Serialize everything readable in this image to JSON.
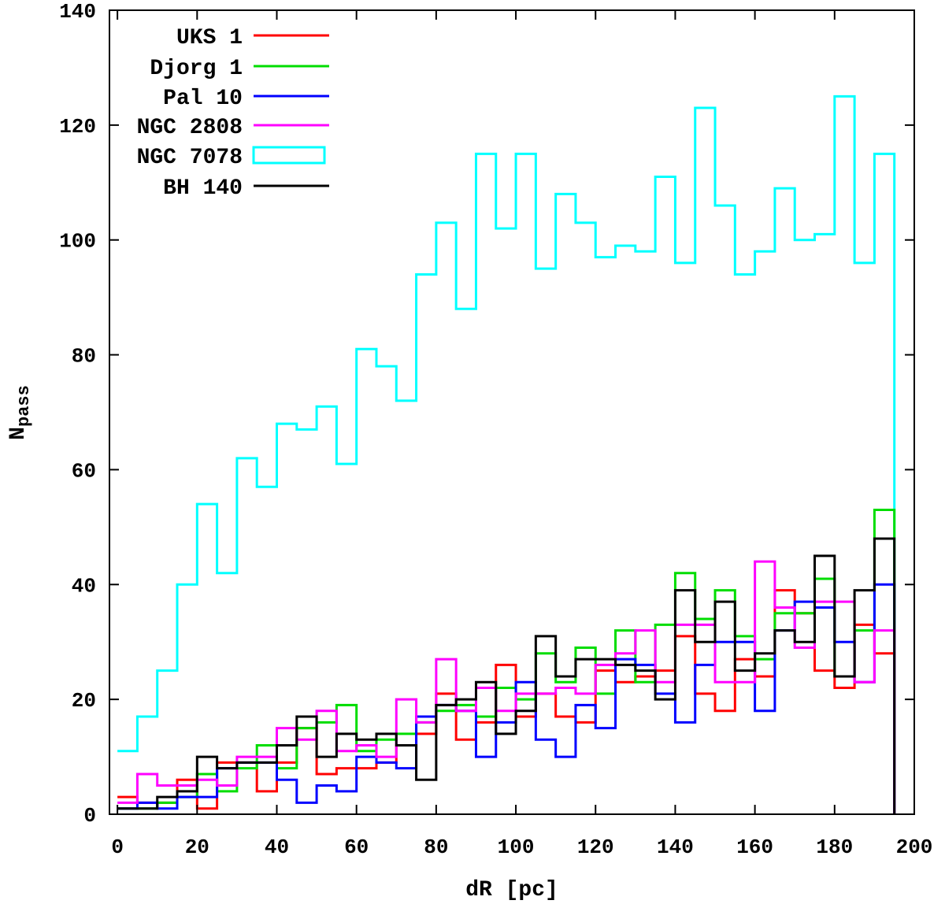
{
  "chart_data": {
    "type": "line",
    "style": "step-histogram",
    "xlabel": "dR [pc]",
    "ylabel": "N",
    "ylabel_subscript": "pass",
    "xlim": [
      -2,
      200
    ],
    "ylim": [
      0,
      140
    ],
    "x_ticks": [
      0,
      20,
      40,
      60,
      80,
      100,
      120,
      140,
      160,
      180,
      200
    ],
    "y_ticks": [
      0,
      20,
      40,
      60,
      80,
      100,
      120,
      140
    ],
    "legend_position": "top-left",
    "grid": false,
    "bin_edges": [
      0,
      5,
      10,
      15,
      20,
      25,
      30,
      35,
      40,
      45,
      50,
      55,
      60,
      65,
      70,
      75,
      80,
      85,
      90,
      95,
      100,
      105,
      110,
      115,
      120,
      125,
      130,
      135,
      140,
      145,
      150,
      155,
      160,
      165,
      170,
      175,
      180,
      185,
      190,
      195
    ],
    "series": [
      {
        "name": "UKS 1",
        "color": "#ff0000",
        "values": [
          3,
          2,
          2,
          6,
          1,
          9,
          9,
          4,
          9,
          15,
          7,
          8,
          8,
          9,
          12,
          14,
          21,
          13,
          16,
          26,
          17,
          21,
          17,
          16,
          25,
          23,
          24,
          25,
          31,
          21,
          18,
          27,
          24,
          39,
          35,
          25,
          22,
          33,
          28
        ]
      },
      {
        "name": "Djorg 1",
        "color": "#00dd00",
        "values": [
          1,
          1,
          2,
          3,
          7,
          4,
          8,
          12,
          8,
          15,
          16,
          19,
          11,
          13,
          14,
          16,
          18,
          19,
          17,
          22,
          20,
          28,
          23,
          29,
          21,
          32,
          23,
          33,
          42,
          34,
          39,
          31,
          27,
          35,
          35,
          41,
          24,
          32,
          53
        ]
      },
      {
        "name": "Pal 10",
        "color": "#0000ff",
        "values": [
          1,
          2,
          1,
          3,
          3,
          8,
          9,
          9,
          6,
          2,
          5,
          4,
          10,
          9,
          8,
          17,
          19,
          18,
          10,
          16,
          23,
          13,
          10,
          19,
          15,
          27,
          26,
          21,
          16,
          26,
          30,
          30,
          18,
          32,
          37,
          36,
          30,
          23,
          40
        ]
      },
      {
        "name": "NGC 2808",
        "color": "#ff00ff",
        "values": [
          2,
          7,
          5,
          5,
          6,
          5,
          10,
          10,
          15,
          13,
          18,
          11,
          12,
          10,
          20,
          16,
          27,
          18,
          22,
          18,
          21,
          21,
          22,
          21,
          26,
          28,
          32,
          23,
          33,
          33,
          23,
          23,
          44,
          36,
          29,
          37,
          37,
          23,
          32
        ]
      },
      {
        "name": "NGC 7078",
        "color": "#00ffff",
        "values": [
          11,
          17,
          25,
          40,
          54,
          42,
          62,
          57,
          68,
          67,
          71,
          61,
          81,
          78,
          72,
          94,
          103,
          88,
          115,
          102,
          115,
          95,
          108,
          103,
          97,
          99,
          98,
          111,
          96,
          123,
          106,
          94,
          98,
          109,
          100,
          101,
          125,
          96,
          115
        ]
      },
      {
        "name": "BH 140",
        "color": "#000000",
        "values": [
          1,
          1,
          3,
          4,
          10,
          8,
          9,
          9,
          12,
          17,
          10,
          14,
          13,
          14,
          12,
          6,
          19,
          20,
          23,
          14,
          18,
          31,
          24,
          27,
          27,
          26,
          25,
          20,
          39,
          30,
          37,
          25,
          28,
          32,
          30,
          45,
          24,
          39,
          48
        ]
      }
    ]
  }
}
